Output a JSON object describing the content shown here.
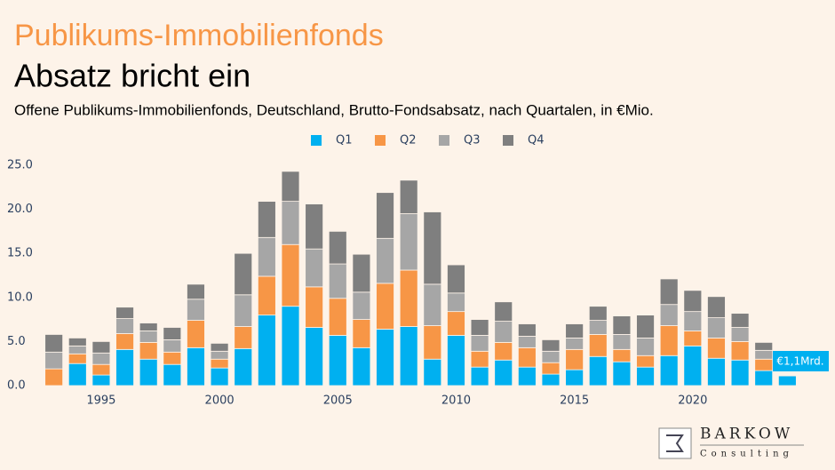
{
  "chart_data": {
    "type": "stacked_bar",
    "title": "Publikums-Immobilienfonds",
    "subtitle": "Absatz bricht ein",
    "description": "Offene Publikums-Immobilienfonds, Deutschland, Brutto-Fondsabsatz, nach Quartalen, in €Mio.",
    "x": [
      1993,
      1994,
      1995,
      1996,
      1997,
      1998,
      1999,
      2000,
      2001,
      2002,
      2003,
      2004,
      2005,
      2006,
      2007,
      2008,
      2009,
      2010,
      2011,
      2012,
      2013,
      2014,
      2015,
      2016,
      2017,
      2018,
      2019,
      2020,
      2021,
      2022,
      2023,
      2024
    ],
    "series": [
      {
        "name": "Q1",
        "color": "#00b0f0",
        "values": [
          0,
          2.5,
          1.2,
          4.1,
          3.0,
          2.4,
          4.3,
          2.0,
          4.2,
          8.0,
          9.0,
          6.6,
          5.7,
          4.3,
          6.4,
          6.7,
          3.0,
          5.7,
          2.1,
          2.9,
          2.1,
          1.3,
          1.8,
          3.3,
          2.7,
          2.1,
          3.4,
          4.5,
          3.1,
          2.9,
          1.7,
          1.1
        ]
      },
      {
        "name": "Q2",
        "color": "#f79646",
        "values": [
          1.9,
          1.1,
          1.2,
          1.8,
          1.9,
          1.4,
          3.1,
          1.0,
          2.5,
          4.4,
          7.0,
          4.6,
          4.2,
          3.2,
          5.2,
          6.4,
          3.8,
          2.7,
          1.8,
          2.0,
          2.2,
          1.3,
          2.3,
          2.5,
          1.4,
          1.3,
          3.4,
          1.7,
          2.3,
          2.1,
          1.3,
          null
        ]
      },
      {
        "name": "Q3",
        "color": "#a6a6a6",
        "values": [
          1.9,
          0.9,
          1.3,
          1.7,
          1.3,
          1.4,
          2.4,
          0.9,
          3.6,
          4.4,
          4.9,
          4.3,
          3.9,
          3.1,
          5.1,
          6.4,
          4.7,
          2.1,
          1.8,
          2.4,
          1.3,
          1.3,
          1.3,
          1.6,
          1.7,
          2.0,
          2.4,
          2.2,
          2.3,
          1.6,
          1.0,
          null
        ]
      },
      {
        "name": "Q4",
        "color": "#7f7f7f",
        "values": [
          2.0,
          0.9,
          1.3,
          1.3,
          0.9,
          1.4,
          1.7,
          0.9,
          4.7,
          4.1,
          3.4,
          5.1,
          3.7,
          4.3,
          5.2,
          3.8,
          8.2,
          3.2,
          1.8,
          2.2,
          1.4,
          1.3,
          1.6,
          1.6,
          2.1,
          2.6,
          2.9,
          2.4,
          2.4,
          1.6,
          0.9,
          null
        ]
      }
    ],
    "annotation": "€1,1Mrd.",
    "xlim": [
      1992.3,
      2024.7
    ],
    "xticks": [
      1995,
      2000,
      2005,
      2010,
      2015,
      2020
    ],
    "ylim": [
      0,
      26
    ],
    "yticks": [
      {
        "value": 0,
        "label": "0.0"
      },
      {
        "value": 5,
        "label": "5.0"
      },
      {
        "value": 10,
        "label": "10.0"
      },
      {
        "value": 15,
        "label": "15.0"
      },
      {
        "value": 20,
        "label": "20.0"
      },
      {
        "value": 25,
        "label": "25.0"
      }
    ],
    "grid": false,
    "legend": "top"
  },
  "logo": {
    "name": "BARKOW",
    "tagline": "Consulting"
  }
}
